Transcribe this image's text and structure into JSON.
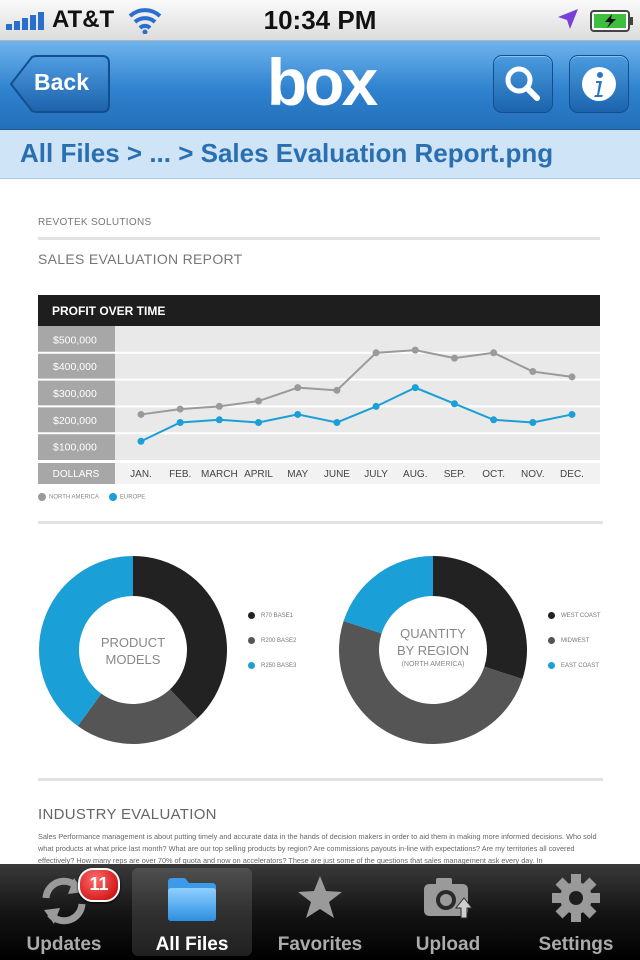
{
  "status_bar": {
    "carrier": "AT&T",
    "time": "10:34 PM"
  },
  "nav": {
    "back_label": "Back",
    "logo_text": "box"
  },
  "breadcrumb": "All Files > ... > Sales Evaluation Report.png",
  "document": {
    "company": "REVOTEK SOLUTIONS",
    "title": "SALES EVALUATION REPORT",
    "industry_title": "INDUSTRY EVALUATION",
    "industry_text": "Sales Performance management is about putting timely and accurate data in the hands of decision makers in order to aid them in making more informed decisions. Who sold what products at what price last month? What are our top selling products by region? Are commissions payouts in-line with expectations? Are my territories all covered effectively? How many reps are over 70% of quota and now on accelerators? These are just some of the questions that sales management ask every day. In"
  },
  "chart_data": [
    {
      "type": "line",
      "title": "PROFIT OVER TIME",
      "axis_label": "DOLLARS",
      "categories": [
        "JAN.",
        "FEB.",
        "MARCH",
        "APRIL",
        "MAY",
        "JUNE",
        "JULY",
        "AUG.",
        "SEP.",
        "OCT.",
        "NOV.",
        "DEC."
      ],
      "y_ticks": [
        "$500,000",
        "$400,000",
        "$300,000",
        "$200,000",
        "$100,000"
      ],
      "ylim": [
        50000,
        550000
      ],
      "series": [
        {
          "name": "NORTH AMERICA",
          "color": "#9a9a9a",
          "values": [
            220000,
            240000,
            250000,
            270000,
            320000,
            310000,
            450000,
            460000,
            430000,
            450000,
            380000,
            360000
          ]
        },
        {
          "name": "EUROPE",
          "color": "#1a9fd6",
          "values": [
            120000,
            190000,
            200000,
            190000,
            220000,
            190000,
            250000,
            320000,
            260000,
            200000,
            190000,
            220000
          ]
        }
      ]
    },
    {
      "type": "pie",
      "style": "donut",
      "center_label": [
        "PRODUCT",
        "MODELS"
      ],
      "labels": [
        "R70 BASE1",
        "R200 BASE2",
        "R250 BASE3"
      ],
      "values": [
        38,
        22,
        40
      ],
      "colors": [
        "#222222",
        "#555555",
        "#1a9fd6"
      ]
    },
    {
      "type": "pie",
      "style": "donut",
      "center_label": [
        "QUANTITY",
        "BY REGION"
      ],
      "center_sublabel": "(NORTH AMERICA)",
      "labels": [
        "WEST COAST",
        "MIDWEST",
        "EAST COAST"
      ],
      "values": [
        30,
        50,
        20
      ],
      "colors": [
        "#222222",
        "#555555",
        "#1a9fd6"
      ]
    }
  ],
  "tabs": [
    {
      "label": "Updates",
      "badge": "11"
    },
    {
      "label": "All Files"
    },
    {
      "label": "Favorites"
    },
    {
      "label": "Upload"
    },
    {
      "label": "Settings"
    }
  ]
}
